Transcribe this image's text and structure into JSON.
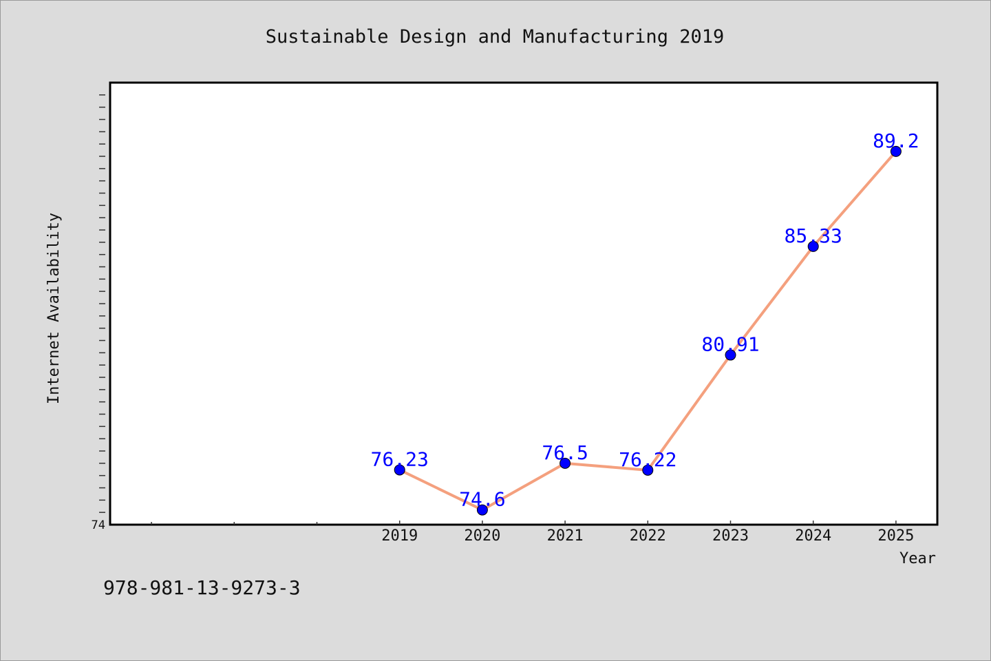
{
  "chart_data": {
    "type": "line",
    "title": "Sustainable Design and Manufacturing 2019",
    "xlabel": "Year",
    "ylabel": "Internet Availability",
    "x": [
      "2019",
      "2020",
      "2021",
      "2022",
      "2023",
      "2024",
      "2025"
    ],
    "series": [
      {
        "values": [
          76.23,
          74.6,
          76.5,
          76.22,
          80.91,
          85.33,
          89.2
        ],
        "data_labels": [
          "76.23",
          "74.6",
          "76.5",
          "76.22",
          "80.91",
          "85.33",
          "89.2"
        ],
        "line_color": "#f4a07e",
        "marker_color": "#0000ff"
      }
    ],
    "ylim": [
      74,
      92
    ],
    "y_tick_labels": [
      "74"
    ],
    "xlim": [
      2015.5,
      2025.5
    ],
    "grid": false,
    "legend": "none",
    "frame_color": "#000000",
    "plot_background": "#ffffff",
    "figure_background": "#dcdcdc"
  },
  "footer": {
    "isbn": "978-981-13-9273-3"
  }
}
